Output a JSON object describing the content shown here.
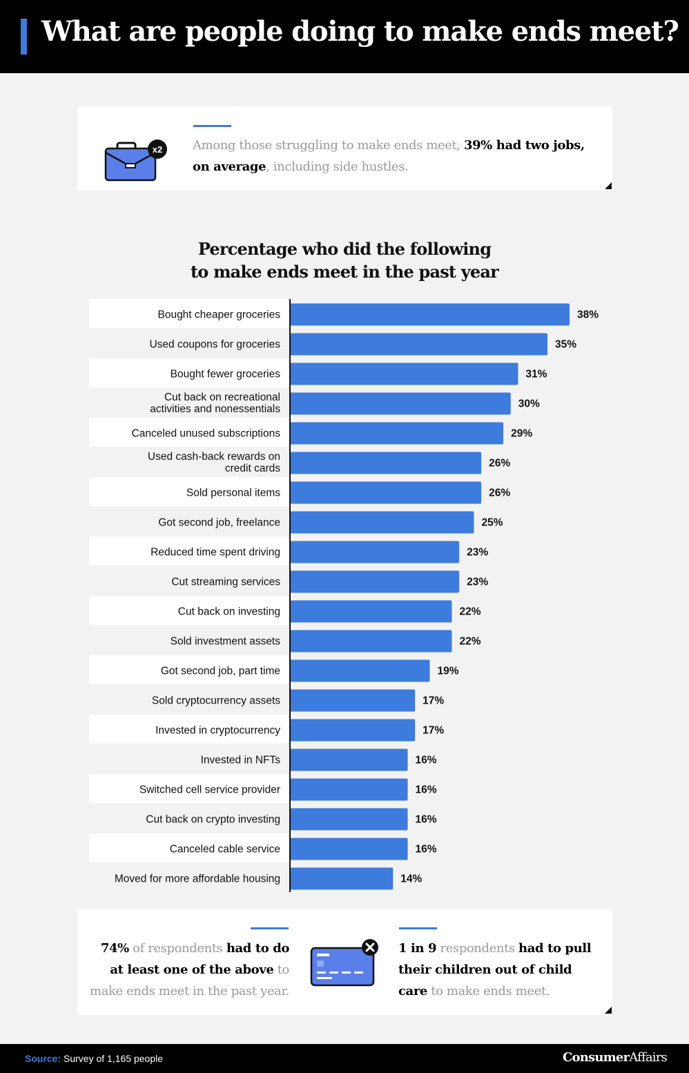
{
  "header": {
    "title": "What are people doing to make ends meet?"
  },
  "top_card": {
    "badge": "x2",
    "text_pre": "Among those struggling to make ends meet, ",
    "text_bold1": "39% had two jobs,",
    "text_bold2": "on average",
    "text_post": ", including side hustles."
  },
  "chart_title": {
    "line1": "Percentage who did the following",
    "line2": "to make ends meet in the past year"
  },
  "chart_data": {
    "type": "bar",
    "orientation": "horizontal",
    "title": "Percentage who did the following to make ends meet in the past year",
    "categories": [
      [
        "Bought cheaper groceries"
      ],
      [
        "Used coupons for groceries"
      ],
      [
        "Bought fewer groceries"
      ],
      [
        "Cut back on recreational",
        "activities and nonessentials"
      ],
      [
        "Canceled unused subscriptions"
      ],
      [
        "Used cash-back rewards on",
        "credit cards"
      ],
      [
        "Sold personal items"
      ],
      [
        "Got second job, freelance"
      ],
      [
        "Reduced time spent driving"
      ],
      [
        "Cut streaming services"
      ],
      [
        "Cut back on investing"
      ],
      [
        "Sold investment assets"
      ],
      [
        "Got second job, part time"
      ],
      [
        "Sold cryptocurrency assets"
      ],
      [
        "Invested in cryptocurrency"
      ],
      [
        "Invested in NFTs"
      ],
      [
        "Switched cell service provider"
      ],
      [
        "Cut back on crypto investing"
      ],
      [
        "Canceled cable service"
      ],
      [
        "Moved for more affordable housing"
      ]
    ],
    "values": [
      38,
      35,
      31,
      30,
      29,
      26,
      26,
      25,
      23,
      23,
      22,
      22,
      19,
      17,
      17,
      16,
      16,
      16,
      16,
      14
    ],
    "value_suffix": "%",
    "xlim": [
      0,
      38
    ],
    "bar_color": "#3d7bdc",
    "grid": false
  },
  "bottom_card": {
    "left_bold1": "74%",
    "left_text1": " of respondents ",
    "left_bold2": "had to do at least one of the above",
    "left_text2": " to make ends meet in the past year.",
    "right_bold1": "1 in 9",
    "right_text1": " respondents ",
    "right_bold2": "had to pull their children out of child care",
    "right_text2": " to make ends meet."
  },
  "footer": {
    "source_label": "Source:",
    "source_text": " Survey of 1,165 people",
    "logo_bold": "Consumer",
    "logo_rest": "Affairs"
  },
  "colors": {
    "accent": "#3d7bdc",
    "dark": "#000000",
    "background": "#f2f2f2"
  },
  "icons": [
    "briefcase-icon",
    "credit-card-icon",
    "close-icon"
  ]
}
